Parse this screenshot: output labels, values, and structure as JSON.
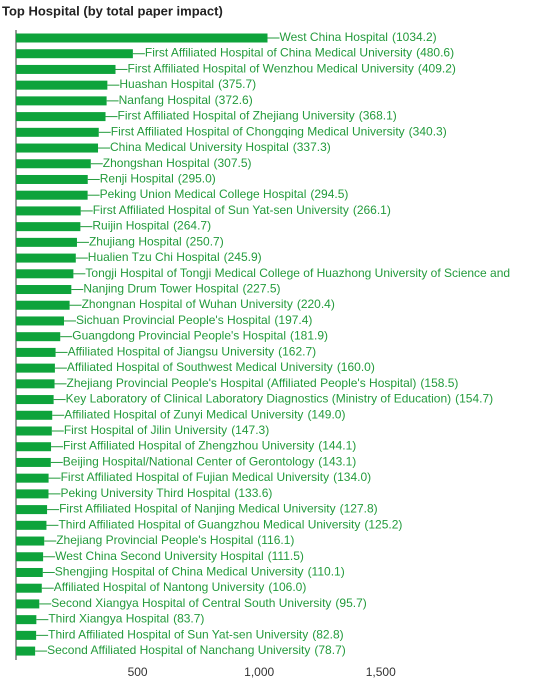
{
  "chart_data": {
    "type": "barh",
    "title": "Top Hospital (by total paper impact)",
    "color": "#0ea33b",
    "label_color": "#239b3c",
    "categories": [
      "West China Hospital",
      "First Affiliated Hospital of China Medical University",
      "First Affiliated Hospital of Wenzhou Medical University",
      "Huashan Hospital",
      "Nanfang Hospital",
      "First Affiliated Hospital of Zhejiang University",
      "First Affiliated Hospital of Chongqing Medical University",
      "China Medical University Hospital",
      "Zhongshan Hospital",
      "Renji Hospital",
      "Peking Union Medical College Hospital",
      "First Affiliated Hospital of Sun Yat-sen University",
      "Ruijin Hospital",
      "Zhujiang Hospital",
      "Hualien Tzu Chi Hospital",
      "Tongji Hospital of Tongji Medical College of Huazhong University of Science and",
      "Nanjing Drum Tower Hospital",
      "Zhongnan Hospital of Wuhan University",
      "Sichuan Provincial People's Hospital",
      "Guangdong Provincial People's Hospital",
      "Affiliated Hospital of Jiangsu University",
      "Affiliated Hospital of Southwest Medical University",
      "Zhejiang Provincial People's Hospital (Affiliated People's Hospital)",
      "Key Laboratory of Clinical Laboratory Diagnostics (Ministry of Education)",
      "Affiliated Hospital of Zunyi Medical University",
      "First Hospital of Jilin University",
      "First Affiliated Hospital of Zhengzhou University",
      "Beijing Hospital/National Center of Gerontology",
      "First Affiliated Hospital of Fujian Medical University",
      "Peking University Third Hospital",
      "First Affiliated Hospital of Nanjing Medical University",
      "Third Affiliated Hospital of Guangzhou Medical University",
      "Zhejiang Provincial People's Hospital",
      "West China Second University Hospital",
      "Shengjing Hospital of China Medical University",
      "Affiliated Hospital of Nantong University",
      "Second Xiangya Hospital of Central South University",
      "Third Xiangya Hospital",
      "Third Affiliated Hospital of Sun Yat-sen University",
      "Second Affiliated Hospital of Nanchang University"
    ],
    "values": [
      1034.2,
      480.6,
      409.2,
      375.7,
      372.6,
      368.1,
      340.3,
      337.3,
      307.5,
      295.0,
      294.5,
      266.1,
      264.7,
      250.7,
      245.9,
      236,
      227.5,
      220.4,
      197.4,
      181.9,
      162.7,
      160.0,
      158.5,
      154.7,
      149.0,
      147.3,
      144.1,
      143.1,
      134.0,
      133.6,
      127.8,
      125.2,
      116.1,
      111.5,
      110.1,
      106.0,
      95.7,
      83.7,
      82.8,
      78.7
    ],
    "value_labels": [
      "(1034.2)",
      "(480.6)",
      "(409.2)",
      "(375.7)",
      "(372.6)",
      "(368.1)",
      "(340.3)",
      "(337.3)",
      "(307.5)",
      "(295.0)",
      "(294.5)",
      "(266.1)",
      "(264.7)",
      "(250.7)",
      "(245.9)",
      null,
      "(227.5)",
      "(220.4)",
      "(197.4)",
      "(181.9)",
      "(162.7)",
      "(160.0)",
      "(158.5)",
      "(154.7)",
      "(149.0)",
      "(147.3)",
      "(144.1)",
      "(143.1)",
      "(134.0)",
      "(133.6)",
      "(127.8)",
      "(125.2)",
      "(116.1)",
      "(111.5)",
      "(110.1)",
      "(106.0)",
      "(95.7)",
      "(83.7)",
      "(82.8)",
      "(78.7)"
    ],
    "xlim": [
      0,
      2200
    ],
    "xticks": [
      500,
      {
        "value": 1000,
        "label": "1,000"
      },
      {
        "value": 1500,
        "label": "1,500"
      }
    ]
  }
}
